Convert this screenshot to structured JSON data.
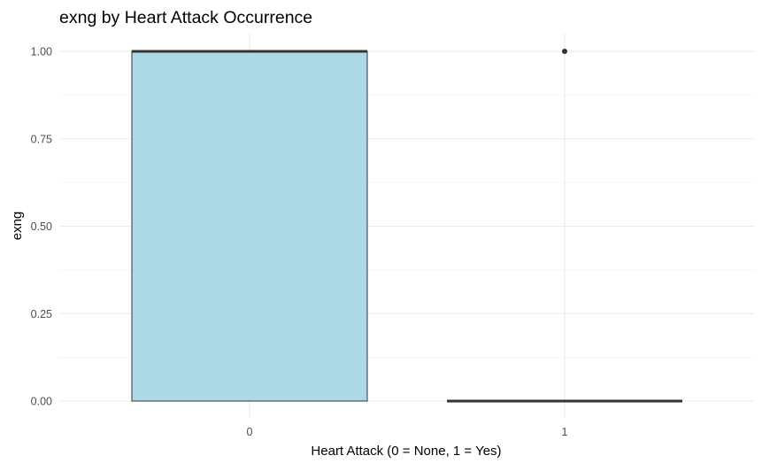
{
  "chart_data": {
    "type": "boxplot",
    "title": "exng by Heart Attack Occurrence",
    "xlabel": "Heart Attack (0 = None, 1 = Yes)",
    "ylabel": "exng",
    "categories": [
      "0",
      "1"
    ],
    "ylim": [
      0,
      1
    ],
    "y_ticks": [
      "0.00",
      "0.25",
      "0.50",
      "0.75",
      "1.00"
    ],
    "y_tick_values": [
      0,
      0.25,
      0.5,
      0.75,
      1
    ],
    "boxes": [
      {
        "category": "0",
        "min": 0,
        "q1": 0,
        "median": 1,
        "q3": 1,
        "max": 1,
        "outliers": []
      },
      {
        "category": "1",
        "min": 0,
        "q1": 0,
        "median": 0,
        "q3": 0,
        "max": 0,
        "outliers": [
          1
        ]
      }
    ],
    "box_fill": "#add8e6",
    "box_line": "#333333",
    "grid_major": "#ebebeb",
    "grid_minor": "#f5f5f5",
    "grid": true,
    "legend": "none"
  }
}
